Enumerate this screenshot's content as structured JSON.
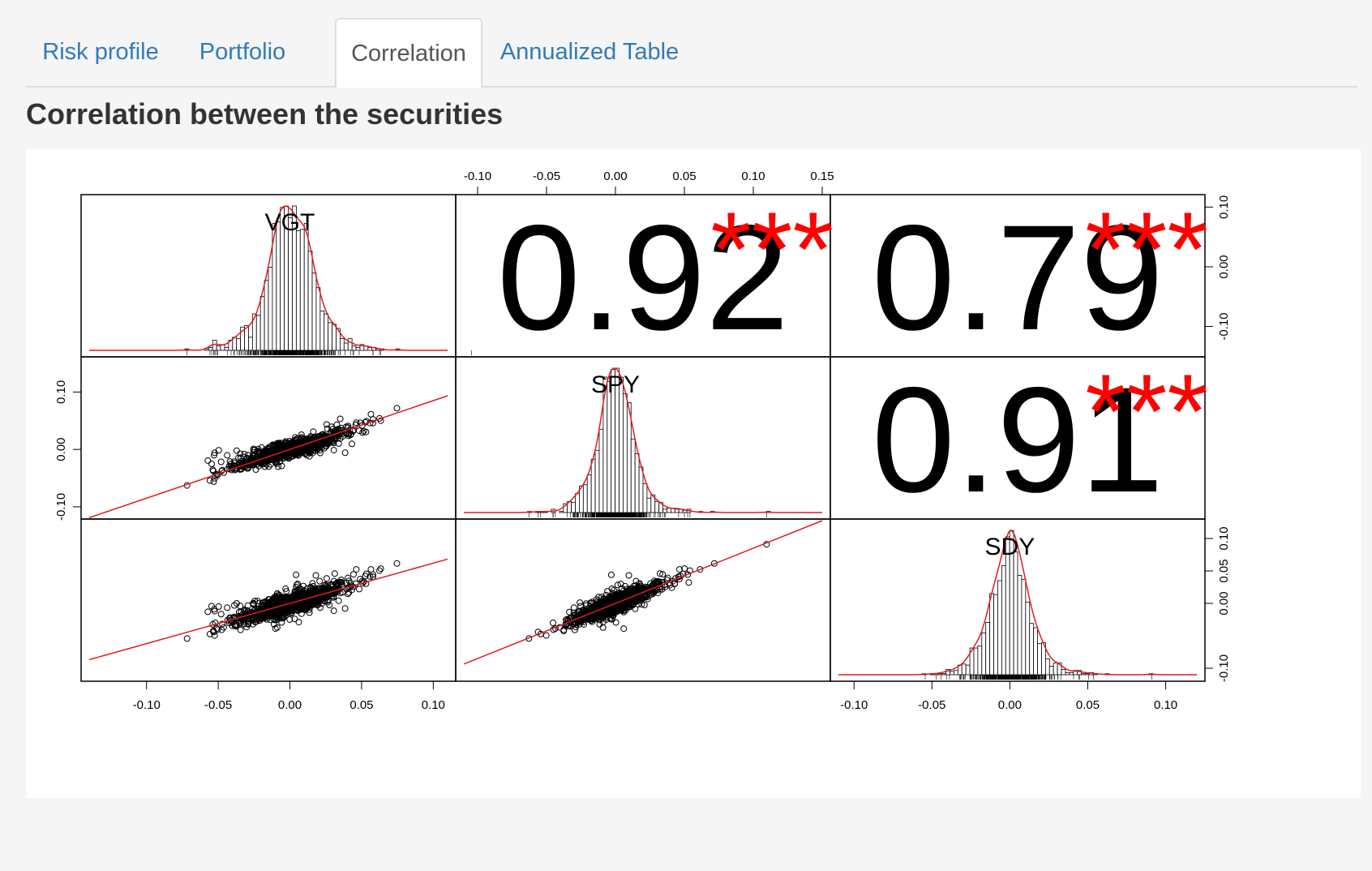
{
  "tabs": [
    {
      "label": "Risk profile",
      "active": false
    },
    {
      "label": "Portfolio",
      "active": false
    },
    {
      "label": "Correlation",
      "active": true
    },
    {
      "label": "Annualized Table",
      "active": false
    }
  ],
  "heading": "Correlation between the securities",
  "colors": {
    "accent_link": "#337ab7",
    "fit_line": "#e41a1c",
    "stars": "#ff0000",
    "ink": "#000000"
  },
  "chart_data": {
    "type": "scatter",
    "subtype": "correlation-scatterplot-matrix",
    "variables": [
      "VGT",
      "SPY",
      "SDY"
    ],
    "correlations": [
      {
        "pair": [
          "VGT",
          "SPY"
        ],
        "value": "0.92",
        "significance": "***"
      },
      {
        "pair": [
          "VGT",
          "SDY"
        ],
        "value": "0.79",
        "significance": "***"
      },
      {
        "pair": [
          "SPY",
          "SDY"
        ],
        "value": "0.91",
        "significance": "***"
      }
    ],
    "axis_ticks": {
      "VGT": [
        "-0.10",
        "-0.05",
        "0.00",
        "0.05",
        "0.10"
      ],
      "SPY": [
        "-0.10",
        "-0.05",
        "0.00",
        "0.05",
        "0.10",
        "0.15"
      ],
      "SDY": [
        "-0.10",
        "-0.05",
        "0.00",
        "0.05",
        "0.10"
      ]
    },
    "row_axis_ticks": {
      "VGT": [
        "0.10",
        "0.00",
        "-0.10"
      ],
      "SPY": [
        "0.10",
        "0.00",
        "-0.10"
      ],
      "SDY": [
        "0.10",
        "0.05",
        "0.00",
        "-0.10"
      ]
    },
    "ranges": {
      "VGT": [
        -0.14,
        0.11
      ],
      "SPY": [
        -0.11,
        0.15
      ],
      "SDY": [
        -0.11,
        0.12
      ]
    },
    "fits": {
      "SPY_vs_VGT": {
        "intercept": 0.0,
        "slope": 0.85
      },
      "SDY_vs_VGT": {
        "intercept": 0.0,
        "slope": 0.62
      },
      "SDY_vs_SPY": {
        "intercept": 0.0,
        "slope": 0.85
      }
    },
    "distribution_sd": {
      "VGT": 0.013,
      "SPY": 0.011,
      "SDY": 0.01
    },
    "grid": false
  }
}
